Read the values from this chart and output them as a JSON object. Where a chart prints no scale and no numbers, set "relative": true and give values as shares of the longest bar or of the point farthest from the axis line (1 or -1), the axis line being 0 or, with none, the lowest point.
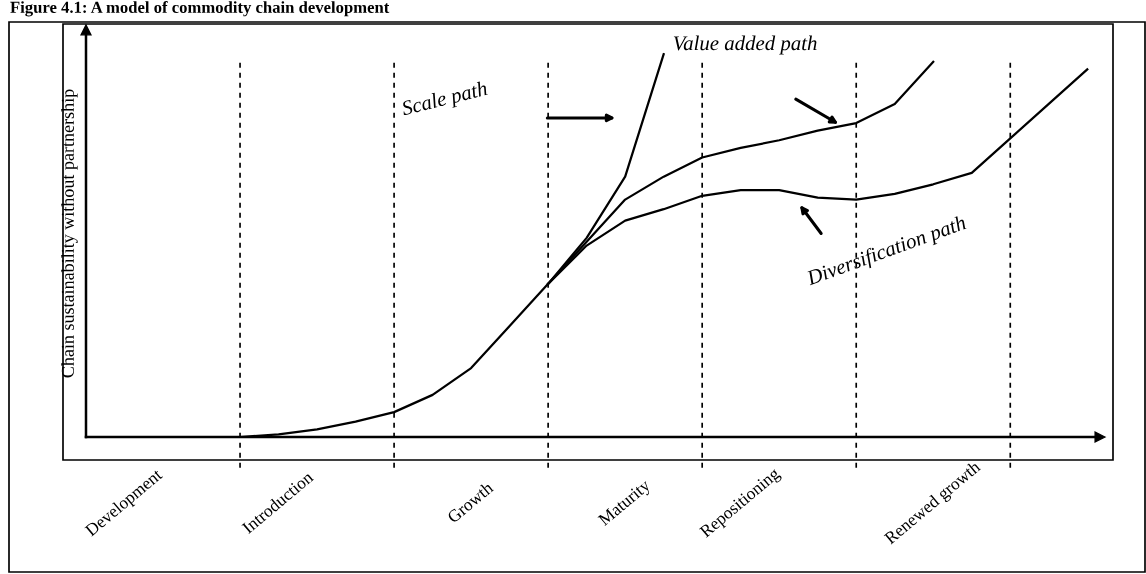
{
  "chart_data": {
    "type": "line",
    "title": "Figure 4.1: A model of commodity chain development",
    "ylabel": "Chain sustainability without partnership",
    "relative": true,
    "categories": [
      null,
      "Development",
      null,
      null,
      null,
      "Introduction",
      null,
      null,
      null,
      null,
      "Growth",
      null,
      null,
      null,
      "Maturity",
      null,
      null,
      "Repositioning",
      null,
      null,
      null,
      null,
      "Renewed growth",
      null,
      null,
      null,
      null
    ],
    "series": [
      {
        "color": "#000000",
        "values": [
          null,
          null,
          null,
          null,
          0,
          0.007,
          0.02,
          0.04,
          0.065,
          0.11,
          0.18,
          0.29,
          0.4,
          0.52,
          0.68,
          1.0,
          null,
          null,
          null,
          null,
          null,
          null,
          null,
          null,
          null,
          null,
          null
        ]
      },
      {
        "color": "#000000",
        "values": [
          null,
          null,
          null,
          null,
          null,
          null,
          null,
          null,
          null,
          null,
          null,
          null,
          0.4,
          0.51,
          0.62,
          0.68,
          0.73,
          0.755,
          0.775,
          0.8,
          0.82,
          0.87,
          0.98,
          null,
          null,
          null,
          null
        ]
      },
      {
        "color": "#000000",
        "values": [
          null,
          null,
          null,
          null,
          null,
          null,
          null,
          null,
          null,
          null,
          null,
          null,
          0.4,
          0.5,
          0.565,
          0.595,
          0.63,
          0.645,
          0.645,
          0.625,
          0.62,
          0.635,
          0.66,
          0.69,
          0.78,
          0.87,
          0.96
        ]
      }
    ],
    "grid": "x",
    "annotations": [
      "Scale path",
      "Value added path",
      "Diversification path"
    ]
  }
}
